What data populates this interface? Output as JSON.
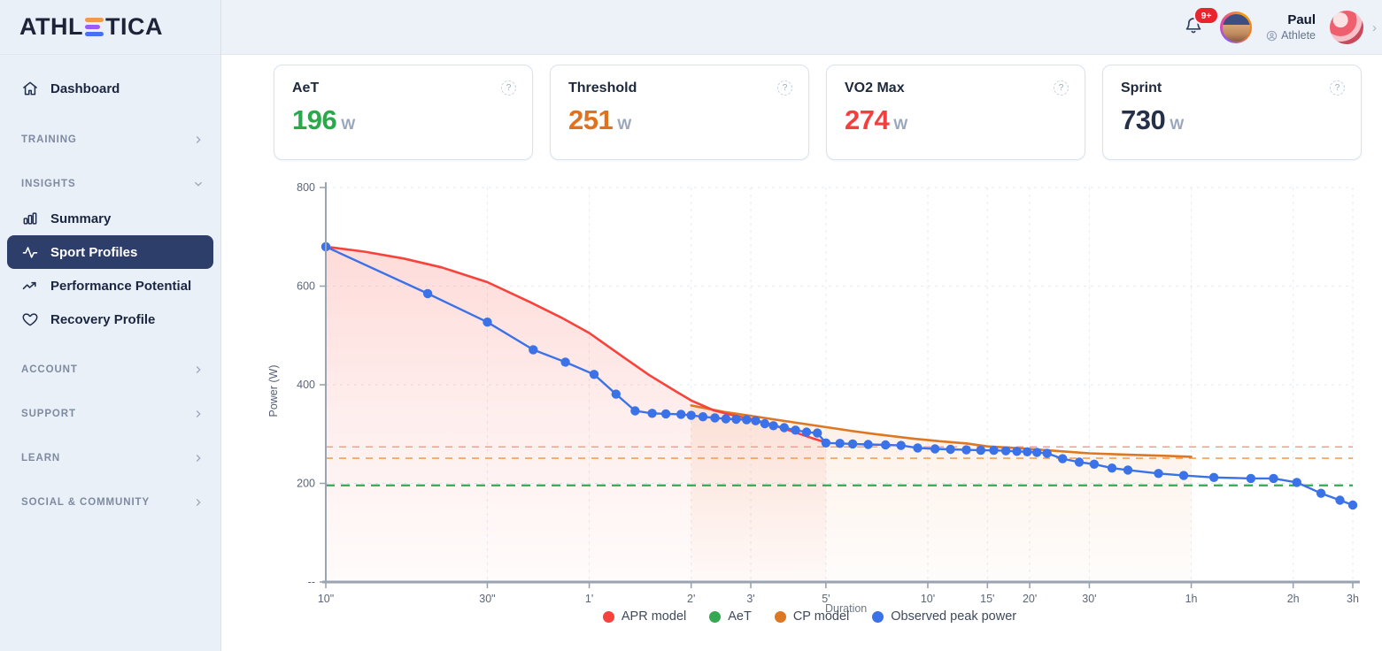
{
  "brand": {
    "name_left": "ATHL",
    "name_right": "TICA"
  },
  "header": {
    "notifications_badge": "9+",
    "user_name": "Paul",
    "user_role": "Athlete",
    "profile_chevron": "›"
  },
  "misc": {
    "help_glyph": "?"
  },
  "colors": {
    "active_pill": "#2e3e6b",
    "aet_green": "#2aa84a",
    "threshold_orange": "#e2711d",
    "vo2_red": "#f43f3f",
    "sprint_navy": "#25304a"
  },
  "sidebar": {
    "dashboard_label": "Dashboard",
    "sections": [
      {
        "label": "TRAINING",
        "chevron": "right",
        "items": []
      },
      {
        "label": "INSIGHTS",
        "chevron": "down",
        "items": [
          {
            "label": "Summary",
            "icon": "bar-chart-icon",
            "active": false
          },
          {
            "label": "Sport Profiles",
            "icon": "activity-icon",
            "active": true
          },
          {
            "label": "Performance Potential",
            "icon": "trending-up-icon",
            "active": false
          },
          {
            "label": "Recovery Profile",
            "icon": "heart-icon",
            "active": false
          }
        ]
      },
      {
        "label": "ACCOUNT",
        "chevron": "right",
        "items": []
      },
      {
        "label": "SUPPORT",
        "chevron": "right",
        "items": []
      },
      {
        "label": "LEARN",
        "chevron": "right",
        "items": []
      },
      {
        "label": "SOCIAL & COMMUNITY",
        "chevron": "right",
        "items": []
      }
    ]
  },
  "cards": [
    {
      "title": "AeT",
      "value": "196",
      "unit": "W",
      "color": "#2aa84a"
    },
    {
      "title": "Threshold",
      "value": "251",
      "unit": "W",
      "color": "#e2711d"
    },
    {
      "title": "VO2 Max",
      "value": "274",
      "unit": "W",
      "color": "#f43f3f"
    },
    {
      "title": "Sprint",
      "value": "730",
      "unit": "W",
      "color": "#25304a"
    }
  ],
  "chart_data": {
    "type": "line",
    "title": "",
    "xlabel": "Duration",
    "ylabel": "Power (W)",
    "x_scale": "log-seconds",
    "ylim": [
      0,
      800
    ],
    "grid": true,
    "legend_position": "bottom",
    "x_ticks": [
      {
        "t": 10,
        "label": "10\""
      },
      {
        "t": 30,
        "label": "30\""
      },
      {
        "t": 60,
        "label": "1'"
      },
      {
        "t": 120,
        "label": "2'"
      },
      {
        "t": 180,
        "label": "3'"
      },
      {
        "t": 300,
        "label": "5'"
      },
      {
        "t": 600,
        "label": "10'"
      },
      {
        "t": 900,
        "label": "15'"
      },
      {
        "t": 1200,
        "label": "20'"
      },
      {
        "t": 1800,
        "label": "30'"
      },
      {
        "t": 3600,
        "label": "1h"
      },
      {
        "t": 7200,
        "label": "2h"
      },
      {
        "t": 10800,
        "label": "3h"
      }
    ],
    "y_ticks": [
      {
        "v": 800,
        "label": "800"
      },
      {
        "v": 600,
        "label": "600"
      },
      {
        "v": 400,
        "label": "400"
      },
      {
        "v": 200,
        "label": "200"
      },
      {
        "v": 0,
        "label": "--"
      }
    ],
    "reference_lines": [
      {
        "name": "VO2 Max",
        "value": 274,
        "color": "#f99b90",
        "width": 1.6,
        "dash": "8 7"
      },
      {
        "name": "Threshold",
        "value": 251,
        "color": "#f0a05c",
        "width": 1.6,
        "dash": "8 7"
      },
      {
        "name": "AeT",
        "value": 196,
        "color": "#35a853",
        "width": 2.2,
        "dash": "10 7"
      }
    ],
    "series": [
      {
        "name": "APR model",
        "color": "#f8423b",
        "width": 2.6,
        "fill_top_alpha": 0.25,
        "fill_rgb": "249,85,74",
        "marker": false,
        "points": [
          [
            10,
            680
          ],
          [
            13,
            670
          ],
          [
            17,
            656
          ],
          [
            22,
            638
          ],
          [
            30,
            608
          ],
          [
            40,
            568
          ],
          [
            50,
            535
          ],
          [
            60,
            505
          ],
          [
            75,
            458
          ],
          [
            90,
            420
          ],
          [
            105,
            392
          ],
          [
            120,
            368
          ],
          [
            140,
            348
          ],
          [
            160,
            338
          ],
          [
            180,
            331
          ],
          [
            210,
            318
          ],
          [
            240,
            305
          ],
          [
            270,
            293
          ],
          [
            300,
            283
          ]
        ]
      },
      {
        "name": "CP model",
        "color": "#dd7722",
        "width": 2.6,
        "fill_top_alpha": 0.28,
        "fill_rgb": "230,126,51",
        "marker": false,
        "points": [
          [
            120,
            358
          ],
          [
            150,
            345
          ],
          [
            180,
            337
          ],
          [
            240,
            324
          ],
          [
            300,
            314
          ],
          [
            360,
            306
          ],
          [
            420,
            300
          ],
          [
            540,
            291
          ],
          [
            660,
            285
          ],
          [
            780,
            281
          ],
          [
            900,
            275
          ],
          [
            1080,
            272
          ],
          [
            1200,
            270
          ],
          [
            1500,
            265
          ],
          [
            1800,
            261
          ],
          [
            2400,
            258
          ],
          [
            3000,
            256
          ],
          [
            3600,
            254
          ]
        ]
      },
      {
        "name": "Observed peak power",
        "color": "#3b72e8",
        "width": 2.4,
        "marker": true,
        "marker_r": 5.2,
        "points": [
          [
            10,
            680
          ],
          [
            20,
            585
          ],
          [
            30,
            527
          ],
          [
            41,
            471
          ],
          [
            51,
            446
          ],
          [
            62,
            421
          ],
          [
            72,
            381
          ],
          [
            82,
            347
          ],
          [
            92,
            342
          ],
          [
            101,
            341
          ],
          [
            112,
            340
          ],
          [
            120,
            338
          ],
          [
            130,
            335
          ],
          [
            141,
            333
          ],
          [
            152,
            331
          ],
          [
            163,
            330
          ],
          [
            175,
            329
          ],
          [
            186,
            327
          ],
          [
            198,
            321
          ],
          [
            210,
            317
          ],
          [
            226,
            313
          ],
          [
            244,
            308
          ],
          [
            263,
            304
          ],
          [
            283,
            302
          ],
          [
            300,
            282
          ],
          [
            330,
            281
          ],
          [
            360,
            280
          ],
          [
            400,
            279
          ],
          [
            450,
            278
          ],
          [
            500,
            277
          ],
          [
            560,
            272
          ],
          [
            630,
            270
          ],
          [
            700,
            269
          ],
          [
            780,
            268
          ],
          [
            860,
            267
          ],
          [
            940,
            267
          ],
          [
            1020,
            266
          ],
          [
            1100,
            265
          ],
          [
            1180,
            264
          ],
          [
            1260,
            263
          ],
          [
            1350,
            261
          ],
          [
            1500,
            250
          ],
          [
            1680,
            243
          ],
          [
            1860,
            239
          ],
          [
            2100,
            231
          ],
          [
            2340,
            227
          ],
          [
            2880,
            220
          ],
          [
            3420,
            216
          ],
          [
            4200,
            212
          ],
          [
            5400,
            210
          ],
          [
            6300,
            210
          ],
          [
            7380,
            202
          ],
          [
            8700,
            180
          ],
          [
            9900,
            166
          ],
          [
            10800,
            156
          ]
        ]
      }
    ],
    "legend": [
      {
        "label": "APR model",
        "color": "#f8423b"
      },
      {
        "label": "AeT",
        "color": "#34a853"
      },
      {
        "label": "CP model",
        "color": "#dd7722"
      },
      {
        "label": "Observed peak power",
        "color": "#3b72e8"
      }
    ]
  }
}
